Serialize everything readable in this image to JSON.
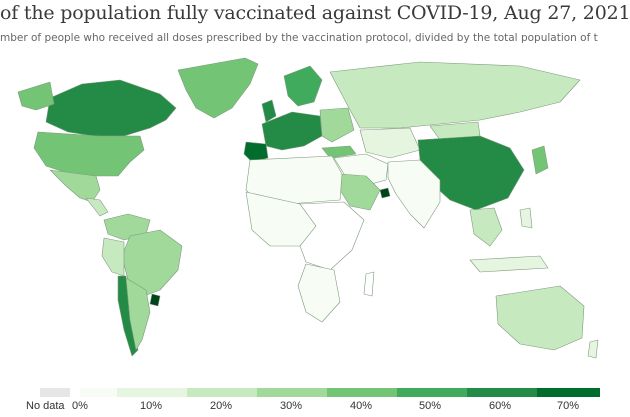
{
  "title": "of the population fully vaccinated against COVID-19, Aug 27, 2021",
  "subtitle": "mber of people who received all doses prescribed by the vaccination protocol, divided by the total population of t",
  "legend": {
    "no_data_label": "No data",
    "ticks": [
      "0%",
      "10%",
      "20%",
      "30%",
      "40%",
      "50%",
      "60%",
      "70%"
    ],
    "colors": [
      "#f7fcf5",
      "#e5f5e0",
      "#c7e9c0",
      "#a1d99b",
      "#74c476",
      "#41ab5d",
      "#238b45",
      "#006d2c",
      "#00441b"
    ],
    "no_data_color": "#e6e6e6"
  },
  "map_colors": {
    "ocean": "#ffffff",
    "border": "#8aa58a"
  }
}
